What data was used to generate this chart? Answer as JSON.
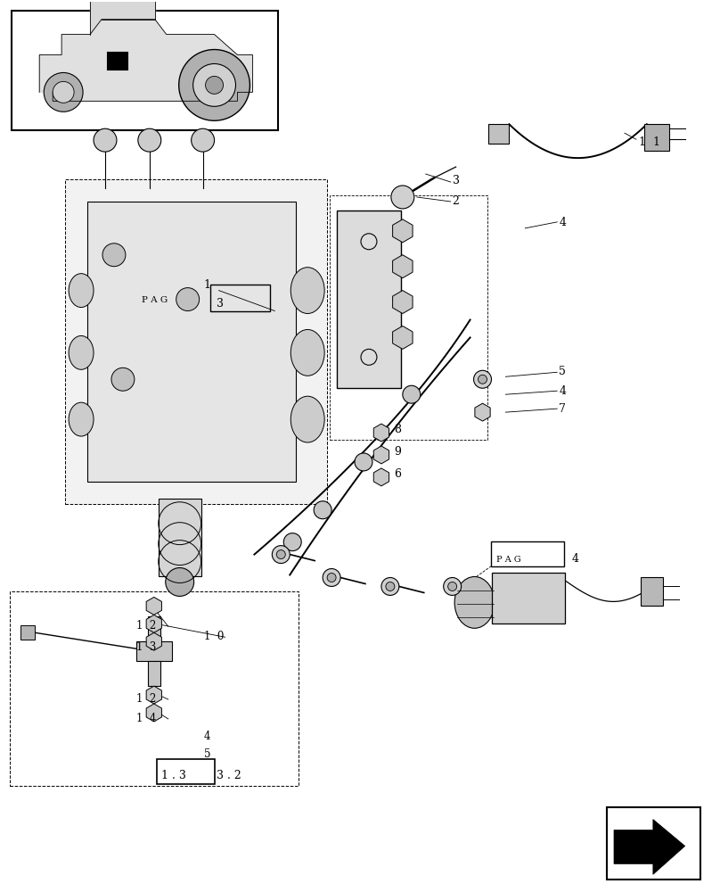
{
  "bg_color": "#ffffff",
  "line_color": "#000000",
  "fig_width": 8.08,
  "fig_height": 10.0,
  "dpi": 100
}
